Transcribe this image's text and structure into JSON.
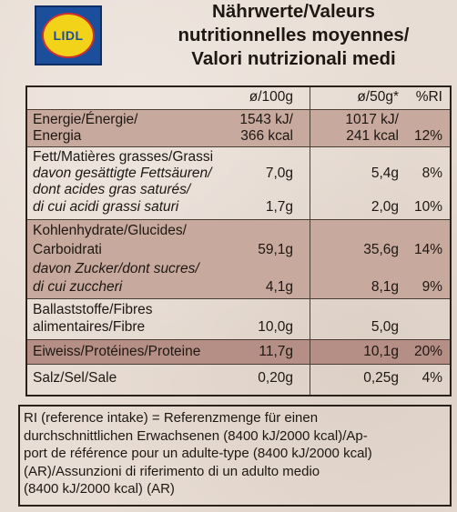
{
  "brand": {
    "logo_text": "LIDL"
  },
  "title": {
    "line1": "Nährwerte/Valeurs",
    "line2": "nutritionnelles moyennes/",
    "line3": "Valori nutrizionali medi"
  },
  "columns": {
    "per100": "ø/100g",
    "per50": "ø/50g*",
    "ri": "%RI"
  },
  "rows": {
    "energy": {
      "label1": "Energie/Énergie/",
      "label2": "Energia",
      "v100a": "1543 kJ/",
      "v100b": "366 kcal",
      "v50a": "1017 kJ/",
      "v50b": "241 kcal",
      "ri": "12%"
    },
    "fat": {
      "label": "Fett/Matières grasses/Grassi",
      "sub1": "davon gesättigte Fettsäuren/",
      "v100": "7,0g",
      "v50": "5,4g",
      "ri": "8%",
      "sub2": "dont acides gras saturés/",
      "sub3": "di cui acidi grassi saturi",
      "sat_v100": "1,7g",
      "sat_v50": "2,0g",
      "sat_ri": "10%"
    },
    "carbs": {
      "label1": "Kohlenhydrate/Glucides/",
      "label2": "Carboidrati",
      "v100": "59,1g",
      "v50": "35,6g",
      "ri": "14%",
      "sub1": "davon Zucker/dont sucres/",
      "sub2": "di cui zuccheri",
      "sug_v100": "4,1g",
      "sug_v50": "8,1g",
      "sug_ri": "9%"
    },
    "fibre": {
      "label1": "Ballaststoffe/Fibres",
      "label2": "alimentaires/Fibre",
      "v100": "10,0g",
      "v50": "5,0g"
    },
    "protein": {
      "label": "Eiweiss/Protéines/Proteine",
      "v100": "11,7g",
      "v50": "10,1g",
      "ri": "20%"
    },
    "salt": {
      "label": "Salz/Sel/Sale",
      "v100": "0,20g",
      "v50": "0,25g",
      "ri": "4%"
    }
  },
  "footer": {
    "line1": "RI (reference intake) = Referenzmenge für einen",
    "line2": "durchschnittlichen Erwachsenen (8400 kJ/2000 kcal)/Ap-",
    "line3": "port de référence pour un adulte-type (8400 kJ/2000 kcal)",
    "line4": "(AR)/Assunzioni di riferimento di un adulto medio",
    "line5": "(8400 kJ/2000 kcal) (AR)"
  },
  "colors": {
    "background": "#e8ddd4",
    "row_shade": "#c7a99e",
    "text": "#1e1712",
    "logo_blue": "#1b4f9c",
    "logo_yellow": "#f3d21a"
  }
}
